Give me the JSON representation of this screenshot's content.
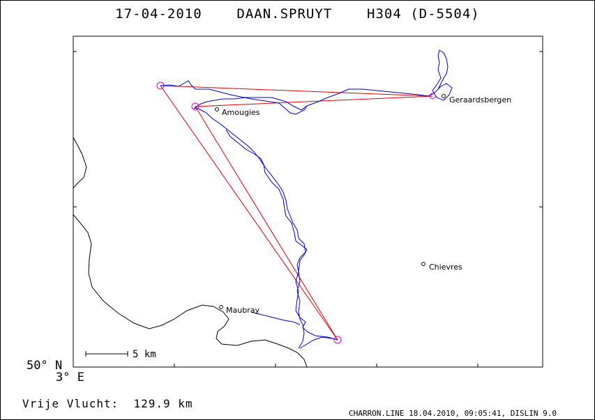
{
  "header": {
    "date": "17-04-2010",
    "pilot": "DAAN.SPRUYT",
    "glider": "H304 (D-5504)"
  },
  "map": {
    "places": [
      {
        "name": "Geraardsbergen"
      },
      {
        "name": "Amougies"
      },
      {
        "name": "Chievres"
      },
      {
        "name": "Maubray"
      }
    ],
    "scale_label": "5 km",
    "lat_label": "50° N",
    "lon_label": "3° E",
    "colors": {
      "track": "#0000cc",
      "task": "#dd0000",
      "turnpoint": "#dd00dd",
      "border": "#000000"
    }
  },
  "footer": {
    "distance_label": "Vrije Vlucht:",
    "distance_value": "129.9 km",
    "credit": "CHARRON.LINE 18.04.2010, 09:05:41, DISLIN 9.0"
  }
}
